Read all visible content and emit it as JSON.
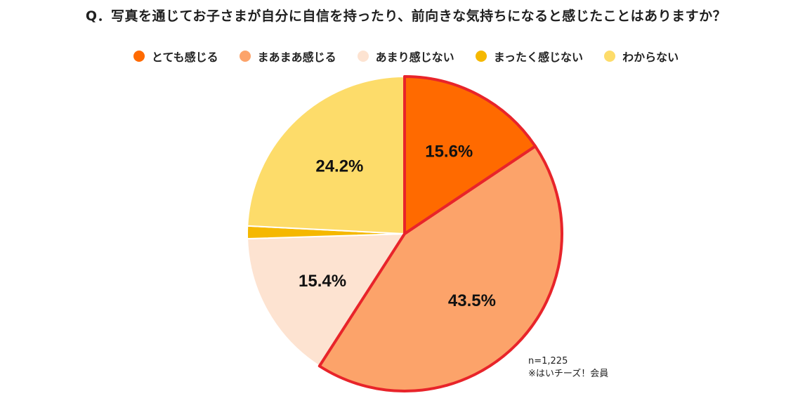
{
  "title": "Q．写真を通じてお子さまが自分に自信を持ったり、前向きな気持ちになると感じたことはありますか？",
  "note": {
    "n": "n=1,225",
    "source": "※はいチーズ！会員"
  },
  "chart_data": {
    "type": "pie",
    "categories": [
      "とても感じる",
      "まあまあ感じる",
      "あまり感じない",
      "まったく感じない",
      "わからない"
    ],
    "values": [
      15.6,
      43.5,
      15.4,
      1.3,
      24.2
    ],
    "labels": [
      "15.6%",
      "43.5%",
      "15.4%",
      "",
      "24.2%"
    ],
    "colors": [
      "#ff6a00",
      "#fca36a",
      "#fde3d1",
      "#f5b800",
      "#fddc6a"
    ],
    "highlight_color": "#e8242a",
    "highlighted": [
      "とても感じる",
      "まあまあ感じる"
    ],
    "start": "12 o'clock",
    "direction": "clockwise",
    "legend": "top"
  }
}
